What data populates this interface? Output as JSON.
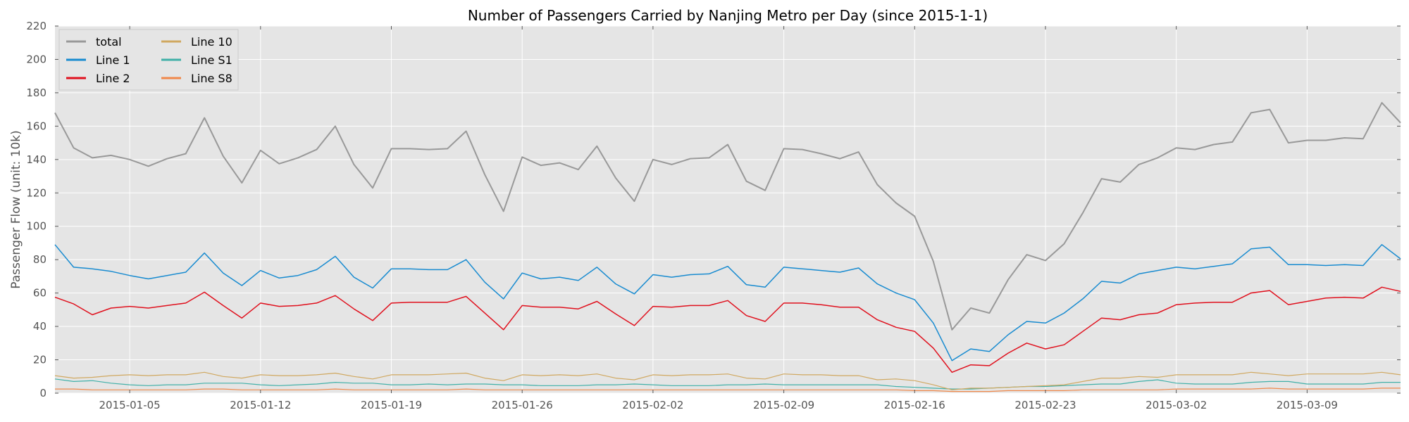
{
  "chart_data": {
    "type": "line",
    "title": "Number of Passengers Carried by Nanjing Metro per Day (since 2015-1-1)",
    "xlabel": "",
    "ylabel": "Passenger Flow (unit: 10k)",
    "ylim": [
      0,
      220
    ],
    "yticks": [
      0,
      20,
      40,
      60,
      80,
      100,
      120,
      140,
      160,
      180,
      200,
      220
    ],
    "x_start": "2015-01-01",
    "x_end": "2015-03-13",
    "x_ticks": [
      {
        "day": 4,
        "label": "2015-01-05"
      },
      {
        "day": 11,
        "label": "2015-01-12"
      },
      {
        "day": 18,
        "label": "2015-01-19"
      },
      {
        "day": 25,
        "label": "2015-01-26"
      },
      {
        "day": 32,
        "label": "2015-02-02"
      },
      {
        "day": 39,
        "label": "2015-02-09"
      },
      {
        "day": 46,
        "label": "2015-02-16"
      },
      {
        "day": 53,
        "label": "2015-02-23"
      },
      {
        "day": 60,
        "label": "2015-03-02"
      },
      {
        "day": 67,
        "label": "2015-03-09"
      }
    ],
    "grid": true,
    "legend_position": "top-left",
    "legend_columns": 2,
    "series": [
      {
        "name": "total",
        "color": "#999999",
        "width": 2,
        "values": [
          168,
          147,
          141,
          142.5,
          140,
          136,
          140.5,
          143.5,
          165,
          142,
          126,
          145.5,
          137.5,
          141,
          146,
          160,
          137,
          123,
          146.5,
          146.5,
          146,
          146.5,
          157,
          131,
          109,
          141.5,
          136.5,
          138,
          134,
          148,
          129,
          115,
          140,
          137,
          140.5,
          141,
          149,
          127,
          121.5,
          146.5,
          146,
          143.5,
          140.5,
          144.5,
          125,
          114,
          106,
          79,
          38,
          51,
          48,
          68,
          83,
          79.5,
          89.5,
          108,
          128.5,
          126.5,
          137,
          141,
          147,
          146,
          149,
          150.5,
          168,
          170,
          150,
          151.5,
          151.5,
          153,
          152.5,
          174,
          162
        ]
      },
      {
        "name": "Line  1",
        "color": "#188bd0",
        "width": 1.5,
        "values": [
          89,
          75.5,
          74.5,
          73,
          70.5,
          68.5,
          70.5,
          72.5,
          84,
          72,
          64.5,
          73.5,
          69,
          70.5,
          74,
          82,
          69.5,
          63,
          74.5,
          74.5,
          74,
          74,
          80,
          66.5,
          56.5,
          72,
          68.5,
          69.5,
          67.5,
          75.5,
          65.5,
          59.5,
          71,
          69.5,
          71,
          71.5,
          76,
          65,
          63.5,
          75.5,
          74.5,
          73.5,
          72.5,
          75,
          65.5,
          60,
          56,
          42,
          19.5,
          26.5,
          25,
          35,
          43,
          42,
          48,
          56.5,
          67,
          66,
          71.5,
          73.5,
          75.5,
          74.5,
          76,
          77.5,
          86.5,
          87.5,
          77,
          77,
          76.5,
          77,
          76.5,
          89,
          80.5
        ]
      },
      {
        "name": "Line  2",
        "color": "#e0101d",
        "width": 1.5,
        "values": [
          57.5,
          53.5,
          47,
          51,
          52,
          51,
          52.5,
          54,
          60.5,
          52.5,
          45,
          54,
          52,
          52.5,
          54,
          58.5,
          50.5,
          43.5,
          54,
          54.5,
          54.5,
          54.5,
          58,
          48,
          38,
          52.5,
          51.5,
          51.5,
          50.5,
          55,
          47.5,
          40.5,
          52,
          51.5,
          52.5,
          52.5,
          55.5,
          46.5,
          43,
          54,
          54,
          53,
          51.5,
          51.5,
          44,
          39.5,
          37,
          27,
          12.5,
          17,
          16.5,
          24,
          30,
          26.5,
          29,
          37,
          45,
          44,
          47,
          48,
          53,
          54,
          54.5,
          54.5,
          60,
          61.5,
          53,
          55,
          57,
          57.5,
          57,
          63.5,
          61
        ]
      },
      {
        "name": "Line 10",
        "color": "#d0a860",
        "width": 1.2,
        "values": [
          10.5,
          9,
          9.5,
          10.5,
          11,
          10.5,
          11,
          11,
          12.5,
          10,
          9,
          11,
          10.5,
          10.5,
          11,
          12,
          10,
          8.5,
          11,
          11,
          11,
          11.5,
          12,
          9,
          7.5,
          11,
          10.5,
          11,
          10.5,
          11.5,
          9,
          8,
          11,
          10.5,
          11,
          11,
          11.5,
          9,
          8.5,
          11.5,
          11,
          11,
          10.5,
          10.5,
          8,
          8.5,
          7.5,
          5,
          2,
          3,
          3,
          3.5,
          4,
          4.5,
          5,
          7,
          9,
          9,
          10,
          9.5,
          11,
          11,
          11,
          11,
          12.5,
          11.5,
          10.5,
          11.5,
          11.5,
          11.5,
          11.5,
          12.5,
          11
        ]
      },
      {
        "name": "Line S1",
        "color": "#40b0a8",
        "width": 1.2,
        "values": [
          8.5,
          7,
          7.5,
          6,
          5,
          4.5,
          5,
          5,
          6,
          6,
          6,
          5,
          4.5,
          5,
          5.5,
          6.5,
          6,
          6,
          5,
          5,
          5.5,
          5,
          5.5,
          5.5,
          5,
          5,
          4.5,
          4.5,
          4.5,
          5,
          5,
          5.5,
          5,
          4.5,
          4.5,
          4.5,
          5,
          5,
          5.5,
          5,
          5,
          5,
          5,
          5,
          5,
          4,
          3.5,
          3,
          2.5,
          2.5,
          3,
          3.5,
          4,
          4,
          4.5,
          5,
          5.5,
          5.5,
          7,
          8,
          6,
          5.5,
          5.5,
          5.5,
          6.5,
          7,
          7,
          5.5,
          5.5,
          5.5,
          5.5,
          6.5,
          6.5
        ]
      },
      {
        "name": "Line S8",
        "color": "#f0884a",
        "width": 1.2,
        "values": [
          2.5,
          2.5,
          2,
          2,
          2,
          2,
          2,
          2,
          2.5,
          2.5,
          2,
          2,
          2,
          2,
          2,
          2.5,
          2,
          2,
          2,
          2,
          2,
          2,
          2.5,
          2,
          2,
          2,
          2,
          2,
          2,
          2,
          2,
          2,
          2,
          2,
          2,
          2,
          2,
          2,
          2,
          2,
          2,
          2,
          2,
          2,
          2,
          2,
          1.5,
          1.5,
          1,
          1,
          1,
          1.5,
          1.5,
          1.5,
          1.5,
          2,
          2,
          2,
          2,
          2,
          2.5,
          2.5,
          2.5,
          2.5,
          2.5,
          3,
          2.5,
          2.5,
          2.5,
          2.5,
          2.5,
          3,
          3
        ]
      }
    ]
  }
}
